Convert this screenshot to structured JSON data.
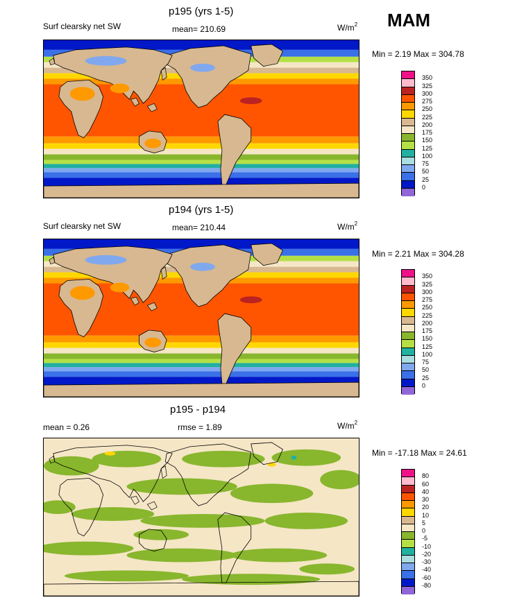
{
  "season": "MAM",
  "panels": [
    {
      "title": "p195 (yrs 1-5)",
      "subtitle": "Surf clearsky net SW",
      "mean_text": "mean= 210.69",
      "unit_base": "W/m",
      "unit_sup": "2",
      "minmax": "Min =   2.19 Max = 304.78",
      "levels": [
        "350",
        "325",
        "300",
        "275",
        "250",
        "225",
        "200",
        "175",
        "150",
        "125",
        "100",
        "75",
        "50",
        "25",
        "0"
      ]
    },
    {
      "title": "p194 (yrs 1-5)",
      "subtitle": "Surf clearsky net SW",
      "mean_text": "mean= 210.44",
      "unit_base": "W/m",
      "unit_sup": "2",
      "minmax": "Min =   2.21 Max = 304.28",
      "levels": [
        "350",
        "325",
        "300",
        "275",
        "250",
        "225",
        "200",
        "175",
        "150",
        "125",
        "100",
        "75",
        "50",
        "25",
        "0"
      ]
    },
    {
      "title": "p195 - p194",
      "mean_text": "mean =   0.26",
      "rmse_text": "rmse =   1.89",
      "unit_base": "W/m",
      "unit_sup": "2",
      "minmax": "Min = -17.18 Max =  24.61",
      "levels": [
        "80",
        "60",
        "40",
        "30",
        "20",
        "10",
        "5",
        "0",
        "-5",
        "-10",
        "-20",
        "-30",
        "-40",
        "-60",
        "-80"
      ]
    }
  ],
  "colors": {
    "colorbar": [
      "#ee1188",
      "#ffbbcc",
      "#bb2222",
      "#ff5500",
      "#ff9900",
      "#ffd700",
      "#d8b890",
      "#f5e6c6",
      "#88b62d",
      "#b5e045",
      "#22b0a0",
      "#aadde0",
      "#80a8ee",
      "#3a70e8",
      "#0018c8",
      "#9066d8"
    ],
    "abs": {
      "ocean_polar": "#0018c8",
      "ocean_55": "#3a70e8",
      "ocean_45": "#80a8ee",
      "ocean_40": "#22b0a0",
      "ocean_35": "#b5e045",
      "ocean_30": "#88b62d",
      "ocean_25": "#f5e6c6",
      "ocean_20": "#d8b890",
      "ocean_15": "#ffd700",
      "ocean_10": "#ff9900",
      "ocean_eq": "#ff5500",
      "max": "#bb2222",
      "land": "#d8b890",
      "desert": "#ff9900"
    },
    "diff": {
      "background": "#f5e6c6",
      "patch": "#88b62d",
      "warm": "#ffd700",
      "cool": "#22b0a0"
    }
  }
}
